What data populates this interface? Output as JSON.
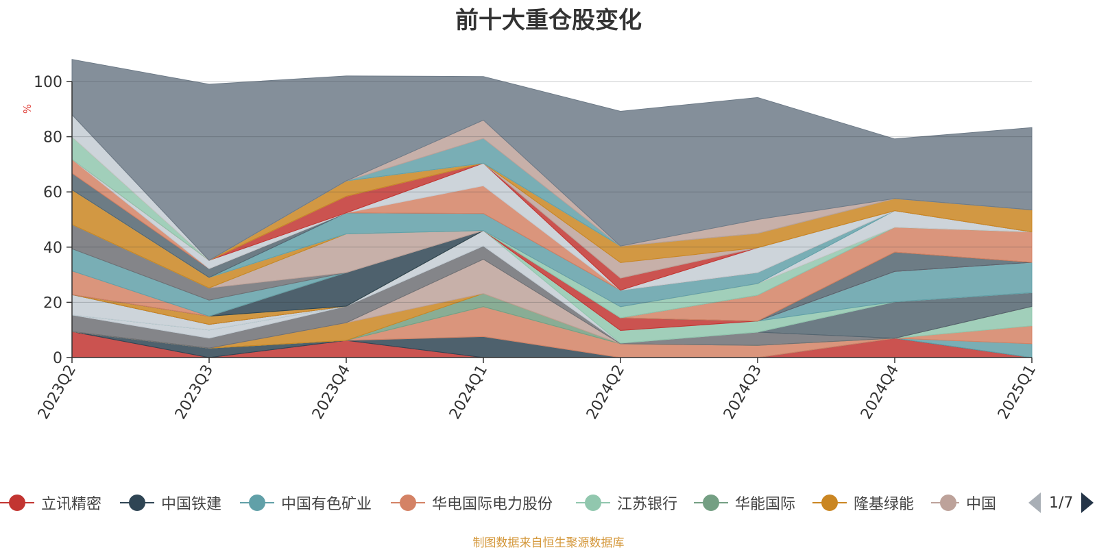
{
  "title": "前十大重仓股变化",
  "unit_label": "%",
  "source_note": "制图数据来自恒生聚源数据库",
  "legend": {
    "items": [
      {
        "label": "立讯精密",
        "color": "#c23531"
      },
      {
        "label": "中国铁建",
        "color": "#2f4554"
      },
      {
        "label": "中国有色矿业",
        "color": "#61a0a8"
      },
      {
        "label": "华电国际电力股份",
        "color": "#d48265"
      },
      {
        "label": "江苏银行",
        "color": "#91c7ae"
      },
      {
        "label": "华能国际",
        "color": "#749f83"
      },
      {
        "label": "隆基绿能",
        "color": "#ca8622"
      },
      {
        "label": "中国",
        "color": "#bda29a"
      }
    ],
    "page_text": "1/7"
  },
  "chart_data": {
    "type": "area",
    "stacked": true,
    "title": "前十大重仓股变化",
    "ylabel": "%",
    "ylim": [
      0,
      100
    ],
    "yticks": [
      0,
      20,
      40,
      60,
      80,
      100
    ],
    "grid": true,
    "categories": [
      "2023Q2",
      "2023Q3",
      "2023Q4",
      "2024Q1",
      "2024Q2",
      "2024Q3",
      "2024Q4",
      "2025Q1"
    ],
    "series": [
      {
        "color": "#c23531",
        "values": [
          9.4,
          0,
          6.2,
          0,
          0,
          0,
          7.0,
          0
        ]
      },
      {
        "color": "#2f4554",
        "values": [
          0,
          3.4,
          0,
          7.6,
          0,
          0,
          0,
          0
        ]
      },
      {
        "color": "#61a0a8",
        "values": [
          0,
          0,
          0,
          0,
          0,
          0,
          0,
          5.0
        ]
      },
      {
        "color": "#d48265",
        "values": [
          0,
          0,
          0,
          10.8,
          5.0,
          4.4,
          0,
          6.5
        ]
      },
      {
        "color": "#91c7ae",
        "values": [
          0,
          0,
          0,
          0,
          0,
          0,
          0,
          7.0
        ]
      },
      {
        "color": "#749f83",
        "values": [
          0,
          0,
          0,
          4.8,
          0,
          0,
          0,
          0
        ]
      },
      {
        "color": "#ca8622",
        "values": [
          0,
          0,
          6.4,
          0,
          0,
          0,
          0,
          0
        ]
      },
      {
        "color": "#bda29a",
        "values": [
          0,
          0,
          0,
          12.4,
          0,
          0,
          0,
          0
        ]
      },
      {
        "color": "#6e7074",
        "values": [
          6.0,
          3.6,
          6.0,
          4.8,
          0.2,
          4.8,
          0,
          0
        ]
      },
      {
        "color": "#546570",
        "values": [
          0,
          0,
          0,
          0,
          0,
          0,
          13.2,
          5.0
        ]
      },
      {
        "color": "#c4ccd3",
        "values": [
          0,
          3.0,
          0,
          5.6,
          0,
          0,
          0,
          0
        ]
      },
      {
        "color": "#91c7ae",
        "values": [
          0,
          0,
          0,
          0,
          4.6,
          4.0,
          0,
          0
        ]
      },
      {
        "color": "#61a0a8",
        "values": [
          0,
          0,
          0,
          0,
          0,
          0,
          11.0,
          11.0
        ]
      },
      {
        "color": "#c4ccd3",
        "values": [
          7.4,
          2.0,
          0,
          0,
          0,
          0,
          0,
          0
        ]
      },
      {
        "color": "#c23531",
        "values": [
          0,
          0,
          0,
          0,
          4.6,
          0,
          0,
          0
        ]
      },
      {
        "color": "#546570",
        "values": [
          0,
          0,
          0,
          0,
          0,
          0,
          7.0,
          0
        ]
      },
      {
        "color": "#ca8622",
        "values": [
          0,
          3.0,
          0,
          0,
          0,
          0,
          0,
          0
        ]
      },
      {
        "color": "#749f83",
        "values": [
          0,
          0,
          0,
          0,
          0,
          0,
          0,
          0
        ]
      },
      {
        "color": "#2f4554",
        "values": [
          0,
          0,
          12.2,
          0,
          0,
          0,
          0,
          0
        ]
      },
      {
        "color": "#d48265",
        "values": [
          8.6,
          0,
          0,
          0,
          0,
          9.4,
          9.0,
          11.0
        ]
      },
      {
        "color": "#61a0a8",
        "values": [
          8.0,
          5.8,
          0,
          0,
          0,
          0,
          0,
          0
        ]
      },
      {
        "color": "#6e7074",
        "values": [
          8.8,
          4.4,
          0,
          0,
          0,
          0,
          0,
          0
        ]
      },
      {
        "color": "#bda29a",
        "values": [
          0,
          0,
          14.0,
          0,
          0,
          0,
          0,
          0
        ]
      },
      {
        "color": "#91c7ae",
        "values": [
          0,
          0,
          0,
          0,
          4.0,
          4.2,
          0,
          0
        ]
      },
      {
        "color": "#ca8622",
        "values": [
          12.6,
          3.8,
          0,
          0,
          0,
          0,
          0,
          0
        ]
      },
      {
        "color": "#c4ccd3",
        "values": [
          0,
          0,
          0,
          0,
          0,
          0,
          6.0,
          0
        ]
      },
      {
        "color": "#61a0a8",
        "values": [
          0,
          0,
          7.6,
          6.2,
          6.0,
          4.0,
          0,
          0
        ]
      },
      {
        "color": "#546570",
        "values": [
          6.0,
          3.2,
          0,
          0,
          0,
          0,
          0,
          0
        ]
      },
      {
        "color": "#d48265",
        "values": [
          5.0,
          0,
          0,
          10.0,
          0,
          0,
          0,
          0
        ]
      },
      {
        "color": "#c4ccd3",
        "values": [
          0,
          3.0,
          0,
          8.2,
          0,
          9.0,
          0,
          0
        ]
      },
      {
        "color": "#c23531",
        "values": [
          0,
          0,
          6.0,
          0,
          4.4,
          0,
          0,
          0
        ]
      },
      {
        "color": "#91c7ae",
        "values": [
          8.2,
          0,
          0,
          0,
          0,
          0,
          0,
          0
        ]
      },
      {
        "color": "#bda29a",
        "values": [
          0,
          0,
          0,
          0,
          5.6,
          0,
          0,
          0
        ]
      },
      {
        "color": "#ca8622",
        "values": [
          0,
          0,
          5.6,
          0,
          6.0,
          5.2,
          4.4,
          8.0
        ]
      },
      {
        "color": "#c4ccd3",
        "values": [
          8.0,
          0,
          0,
          0,
          0,
          0,
          0,
          0
        ]
      },
      {
        "color": "#61a0a8",
        "values": [
          0,
          0,
          0,
          9.0,
          0,
          0,
          0,
          0
        ]
      },
      {
        "color": "#bda29a",
        "values": [
          0,
          0,
          0,
          6.6,
          0,
          5.0,
          0,
          0
        ]
      },
      {
        "color": "#6e7b88",
        "values": [
          20.0,
          63.8,
          38.0,
          15.8,
          48.8,
          44.2,
          21.6,
          29.8
        ]
      }
    ]
  }
}
